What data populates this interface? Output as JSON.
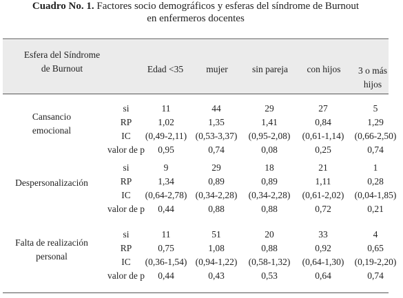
{
  "title": {
    "bold_part": "Cuadro No. 1.",
    "rest": "Factores socio demográficos y esferas del síndrome de Burnout",
    "line2": "en enfermeros docentes"
  },
  "header": {
    "row_label_line1": "Esfera del Síndrome",
    "row_label_line2": "de Burnout",
    "columns": [
      "Edad <35",
      "mujer",
      "sin pareja",
      "con hijos",
      "3 o más hijos"
    ],
    "last_col_line1": "3 o más",
    "last_col_line2": "hijos"
  },
  "groups": [
    {
      "label_line1": "Cansancio",
      "label_line2": "emocional",
      "rows": [
        {
          "stat": "si",
          "values": [
            "11",
            "44",
            "29",
            "27",
            "5"
          ]
        },
        {
          "stat": "RP",
          "values": [
            "1,02",
            "1,35",
            "1,41",
            "0,84",
            "1,29"
          ]
        },
        {
          "stat": "IC",
          "values": [
            "(0,49-2,11)",
            "(0,53-3,37)",
            "(0,95-2,08)",
            "(0,61-1,14)",
            "(0,66-2,50)"
          ]
        },
        {
          "stat": "valor de p",
          "values": [
            "0,95",
            "0,74",
            "0,08",
            "0,25",
            "0,74"
          ]
        }
      ]
    },
    {
      "label_line1": "Despersonalización",
      "label_line2": "",
      "rows": [
        {
          "stat": "si",
          "values": [
            "9",
            "29",
            "18",
            "21",
            "1"
          ]
        },
        {
          "stat": "RP",
          "values": [
            "1,34",
            "0,89",
            "0,89",
            "1,11",
            "0,28"
          ]
        },
        {
          "stat": "IC",
          "values": [
            "(0,64-2,78)",
            "(0,34-2,28)",
            "(0,34-2,28)",
            "(0,61-2,02)",
            "(0,04-1,85)"
          ]
        },
        {
          "stat": "valor de p",
          "values": [
            "0,44",
            "0,88",
            "0,88",
            "0,72",
            "0,21"
          ]
        }
      ]
    },
    {
      "label_line1": "Falta de realización",
      "label_line2": "personal",
      "rows": [
        {
          "stat": "si",
          "values": [
            "11",
            "51",
            "20",
            "33",
            "4"
          ]
        },
        {
          "stat": "RP",
          "values": [
            "0,75",
            "1,08",
            "0,88",
            "0,92",
            "0,65"
          ]
        },
        {
          "stat": "IC",
          "values": [
            "(0,36-1,54)",
            "(0,94-1,22)",
            "(0,58-1,32)",
            "(0,64-1,30)",
            "(0,19-2,20)"
          ]
        },
        {
          "stat": "valor de p",
          "values": [
            "0,44",
            "0,43",
            "0,53",
            "0,64",
            "0,74"
          ]
        }
      ]
    }
  ]
}
